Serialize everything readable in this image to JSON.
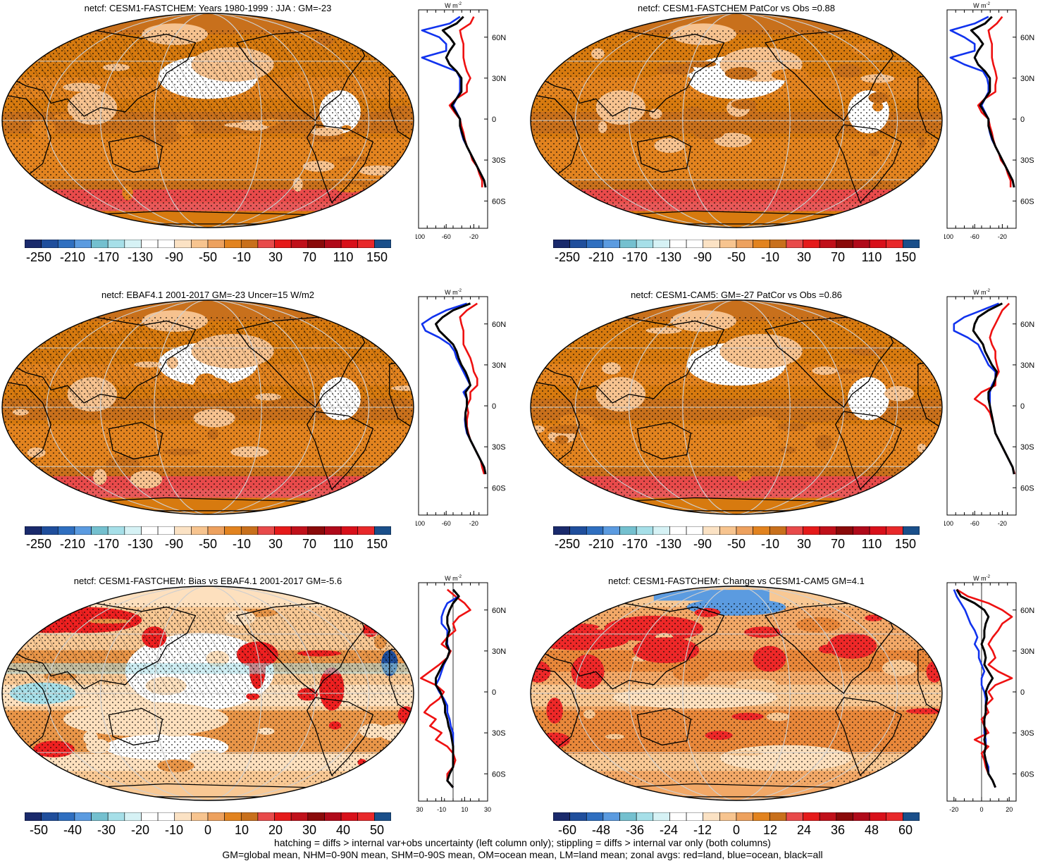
{
  "panels": [
    {
      "title": "netcf: CESM1-FASTCHEM: Years 1980-1999 : JJA : GM=-23",
      "palette": "main",
      "fill": [
        "#d77a0f",
        "#c8701c",
        "#e2831f",
        "#f6c28f",
        "#ffffff"
      ],
      "hatch": true,
      "cbar_labels": [
        "-250",
        "-210",
        "-170",
        "-130",
        "-90",
        "-50",
        "-10",
        "30",
        "70",
        "110",
        "150"
      ],
      "zonal_xticks": [
        "-100",
        "-60",
        "-20"
      ],
      "zonal_xlim": [
        -100,
        0
      ],
      "zonal_yticks": [
        "60N",
        "30N",
        "0",
        "30S",
        "60S"
      ],
      "zonal_units": "W m",
      "zonal_units_sup": "-2"
    },
    {
      "title": "netcf: CESM1-FASTCHEM PatCor vs Obs =0.88",
      "palette": "main",
      "fill": [
        "#d77a0f",
        "#c8701c",
        "#e2831f",
        "#f6c28f",
        "#ffffff"
      ],
      "hatch": false,
      "cbar_labels": [
        "-250",
        "-210",
        "-170",
        "-130",
        "-90",
        "-50",
        "-10",
        "30",
        "70",
        "110",
        "150"
      ],
      "zonal_xticks": [
        "-100",
        "-60",
        "-20"
      ],
      "zonal_xlim": [
        -100,
        0
      ],
      "zonal_yticks": [
        "60N",
        "30N",
        "0",
        "30S",
        "60S"
      ],
      "zonal_units": "W m",
      "zonal_units_sup": "-2"
    },
    {
      "title": "netcf: EBAF4.1 2001-2017 GM=-23 Uncer=15 W/m2",
      "palette": "main",
      "fill": [
        "#d77a0f",
        "#c8701c",
        "#e2831f",
        "#f6c28f",
        "#ffffff"
      ],
      "hatch": true,
      "cbar_labels": [
        "-250",
        "-210",
        "-170",
        "-130",
        "-90",
        "-50",
        "-10",
        "30",
        "70",
        "110",
        "150"
      ],
      "zonal_xticks": [
        "-100",
        "-60",
        "-20"
      ],
      "zonal_xlim": [
        -100,
        0
      ],
      "zonal_yticks": [
        "60N",
        "30N",
        "0",
        "30S",
        "60S"
      ],
      "zonal_units": "W m",
      "zonal_units_sup": "-2"
    },
    {
      "title": "netcf: CESM1-CAM5: GM=-27 PatCor vs Obs =0.86",
      "palette": "main",
      "fill": [
        "#d77a0f",
        "#c8701c",
        "#e2831f",
        "#f6c28f",
        "#ffffff"
      ],
      "hatch": false,
      "cbar_labels": [
        "-250",
        "-210",
        "-170",
        "-130",
        "-90",
        "-50",
        "-10",
        "30",
        "70",
        "110",
        "150"
      ],
      "zonal_xticks": [
        "-100",
        "-60",
        "-20"
      ],
      "zonal_xlim": [
        -100,
        0
      ],
      "zonal_yticks": [
        "60N",
        "30N",
        "0",
        "30S",
        "60S"
      ],
      "zonal_units": "W m",
      "zonal_units_sup": "-2"
    },
    {
      "title": "netcf: CESM1-FASTCHEM: Bias vs EBAF4.1 2001-2017 GM=-5.6",
      "palette": "diff",
      "fill": [
        "#f8c894",
        "#fde0be",
        "#e89548",
        "#ee2020",
        "#ffffff"
      ],
      "hatch": true,
      "cbar_labels": [
        "-50",
        "-40",
        "-30",
        "-20",
        "-10",
        "0",
        "10",
        "20",
        "30",
        "40",
        "50"
      ],
      "zonal_xticks": [
        "-30",
        "-10",
        "10",
        "30"
      ],
      "zonal_xlim": [
        -30,
        30
      ],
      "zonal_yticks": [
        "60N",
        "30N",
        "0",
        "30S",
        "60S"
      ],
      "zonal_units": "W m",
      "zonal_units_sup": "-2"
    },
    {
      "title": "netcf: CESM1-FASTCHEM: Change vs CESM1-CAM5 GM=4.1",
      "palette": "diff",
      "fill": [
        "#f2a867",
        "#f8c894",
        "#e8873a",
        "#ee2828",
        "#fde0be"
      ],
      "hatch": false,
      "cbar_labels": [
        "-60",
        "-48",
        "-36",
        "-24",
        "-12",
        "0",
        "12",
        "24",
        "36",
        "48",
        "60"
      ],
      "zonal_xticks": [
        "-20",
        "0",
        "20"
      ],
      "zonal_xlim": [
        -25,
        25
      ],
      "zonal_yticks": [
        "60N",
        "30N",
        "0",
        "30S",
        "60S"
      ],
      "zonal_units": "W m",
      "zonal_units_sup": "-2"
    }
  ],
  "palettes": {
    "main": [
      "#1a2a6c",
      "#1f4e9c",
      "#2f6fc0",
      "#5b9be0",
      "#74c0cf",
      "#a6dfe8",
      "#d6f2f5",
      "#ffffff",
      "#ffffff",
      "#fbe2c4",
      "#f7c48f",
      "#eda15e",
      "#e2831f",
      "#c8701c",
      "#e84a4a",
      "#e51a1a",
      "#c0101a",
      "#8a0a0a",
      "#b00a1a",
      "#d8101a",
      "#e8282a",
      "#1a4f8a"
    ],
    "diff": [
      "#1a2a6c",
      "#1f4e9c",
      "#2f6fc0",
      "#5b9be0",
      "#74c0cf",
      "#a6dfe8",
      "#d6f2f5",
      "#ffffff",
      "#ffffff",
      "#fbe2c4",
      "#f7c48f",
      "#eda15e",
      "#e2831f",
      "#c8701c",
      "#e84a4a",
      "#e51a1a",
      "#c0101a",
      "#8a0a0a",
      "#b00a1a",
      "#d8101a",
      "#e8282a",
      "#1a4f8a"
    ]
  },
  "line_colors": {
    "land": "#ee1111",
    "ocean": "#1133ee",
    "all": "#000000"
  },
  "zonal_profiles": [
    {
      "lat": [
        75,
        70,
        65,
        60,
        55,
        50,
        45,
        40,
        35,
        30,
        25,
        20,
        15,
        10,
        5,
        0,
        -5,
        -10,
        -15,
        -20,
        -25,
        -30,
        -35,
        -40,
        -45,
        -50
      ],
      "land": [
        -20,
        -25,
        -40,
        -38,
        -35,
        -35,
        -35,
        -33,
        -30,
        -25,
        -30,
        -30,
        -45,
        -55,
        -48,
        -40,
        -38,
        -35,
        -33,
        -30,
        -25,
        -22,
        -15,
        -12,
        -8,
        -8
      ],
      "ocean": [
        -40,
        -55,
        -95,
        -70,
        -60,
        -60,
        -95,
        -70,
        -45,
        -40,
        -40,
        -40,
        -45,
        -50,
        -45,
        -40,
        -40,
        -38,
        -35,
        -30,
        -25,
        -20,
        -15,
        -10,
        -5,
        -3
      ],
      "all": [
        -35,
        -45,
        -65,
        -55,
        -48,
        -55,
        -60,
        -55,
        -45,
        -38,
        -38,
        -38,
        -45,
        -52,
        -46,
        -40,
        -40,
        -37,
        -34,
        -30,
        -25,
        -20,
        -15,
        -10,
        -5,
        -3
      ]
    },
    {
      "lat": [
        75,
        70,
        65,
        60,
        55,
        50,
        45,
        40,
        35,
        30,
        25,
        20,
        15,
        10,
        5,
        0,
        -5,
        -10,
        -15,
        -20,
        -25,
        -30,
        -35,
        -40,
        -45,
        -50
      ],
      "land": [
        -20,
        -28,
        -40,
        -38,
        -35,
        -35,
        -35,
        -33,
        -30,
        -28,
        -30,
        -30,
        -45,
        -55,
        -50,
        -40,
        -38,
        -35,
        -33,
        -30,
        -25,
        -22,
        -15,
        -12,
        -8,
        -8
      ],
      "ocean": [
        -40,
        -60,
        -95,
        -75,
        -60,
        -60,
        -95,
        -75,
        -48,
        -42,
        -40,
        -40,
        -45,
        -50,
        -45,
        -40,
        -40,
        -38,
        -35,
        -30,
        -25,
        -20,
        -15,
        -10,
        -5,
        -3
      ],
      "all": [
        -35,
        -45,
        -65,
        -55,
        -48,
        -55,
        -60,
        -55,
        -45,
        -38,
        -38,
        -38,
        -45,
        -52,
        -46,
        -40,
        -40,
        -37,
        -34,
        -30,
        -25,
        -20,
        -15,
        -10,
        -5,
        -3
      ]
    },
    {
      "lat": [
        75,
        70,
        65,
        60,
        55,
        50,
        45,
        40,
        35,
        30,
        25,
        20,
        15,
        10,
        5,
        0,
        -5,
        -10,
        -15,
        -20,
        -25,
        -30,
        -35,
        -40,
        -45,
        -50
      ],
      "land": [
        -15,
        -30,
        -40,
        -38,
        -35,
        -35,
        -35,
        -30,
        -25,
        -22,
        -20,
        -15,
        -15,
        -25,
        -25,
        -30,
        -28,
        -30,
        -30,
        -28,
        -25,
        -20,
        -15,
        -10,
        -8,
        -5
      ],
      "ocean": [
        -30,
        -60,
        -80,
        -95,
        -90,
        -70,
        -55,
        -48,
        -45,
        -40,
        -35,
        -30,
        -25,
        -35,
        -30,
        -30,
        -32,
        -33,
        -32,
        -30,
        -25,
        -20,
        -15,
        -10,
        -5,
        -3
      ],
      "all": [
        -25,
        -50,
        -65,
        -75,
        -70,
        -60,
        -50,
        -45,
        -42,
        -38,
        -32,
        -28,
        -25,
        -32,
        -30,
        -30,
        -32,
        -32,
        -31,
        -29,
        -25,
        -20,
        -15,
        -10,
        -5,
        -3
      ]
    },
    {
      "lat": [
        75,
        70,
        65,
        60,
        55,
        50,
        45,
        40,
        35,
        30,
        25,
        20,
        15,
        10,
        5,
        0,
        -5,
        -10,
        -15,
        -20,
        -25,
        -30,
        -35,
        -40,
        -45,
        -50
      ],
      "land": [
        -10,
        -20,
        -25,
        -30,
        -35,
        -38,
        -35,
        -30,
        -30,
        -28,
        -25,
        -30,
        -30,
        -50,
        -60,
        -45,
        -38,
        -35,
        -32,
        -30,
        -25,
        -20,
        -15,
        -10,
        -5,
        -2
      ],
      "ocean": [
        -25,
        -50,
        -75,
        -90,
        -90,
        -70,
        -55,
        -50,
        -45,
        -40,
        -30,
        -30,
        -35,
        -38,
        -38,
        -38,
        -36,
        -34,
        -32,
        -30,
        -25,
        -20,
        -15,
        -10,
        -5,
        -3
      ],
      "all": [
        -20,
        -40,
        -55,
        -60,
        -62,
        -55,
        -48,
        -45,
        -40,
        -35,
        -28,
        -30,
        -33,
        -40,
        -40,
        -38,
        -36,
        -34,
        -32,
        -30,
        -25,
        -20,
        -15,
        -10,
        -5,
        -3
      ]
    },
    {
      "lat": [
        75,
        70,
        65,
        60,
        55,
        50,
        45,
        40,
        35,
        30,
        25,
        20,
        15,
        10,
        5,
        0,
        -5,
        -10,
        -15,
        -20,
        -25,
        -30,
        -35,
        -40,
        -45,
        -50,
        -55,
        -60,
        -65,
        -70
      ],
      "land": [
        -5,
        2,
        10,
        15,
        5,
        0,
        2,
        -5,
        -10,
        -2,
        -5,
        -12,
        -20,
        -28,
        -15,
        -8,
        -12,
        -20,
        -25,
        -15,
        -20,
        -10,
        -15,
        -5,
        0,
        2,
        0,
        -5,
        -5,
        0
      ],
      "ocean": [
        0,
        5,
        -5,
        -8,
        -10,
        -10,
        -5,
        -5,
        -5,
        -3,
        -5,
        -8,
        -10,
        -12,
        -15,
        -12,
        -8,
        -5,
        -5,
        -3,
        -2,
        0,
        0,
        0,
        0,
        0,
        0,
        -3,
        -5,
        0
      ],
      "all": [
        0,
        5,
        0,
        -3,
        -5,
        -5,
        -3,
        -5,
        -6,
        -3,
        -5,
        -9,
        -12,
        -15,
        -15,
        -11,
        -9,
        -7,
        -7,
        -5,
        -4,
        -2,
        -1,
        0,
        0,
        0,
        0,
        -3,
        -5,
        0
      ]
    },
    {
      "lat": [
        75,
        70,
        65,
        60,
        55,
        50,
        45,
        40,
        35,
        30,
        25,
        20,
        15,
        10,
        5,
        0,
        -5,
        -10,
        -15,
        -20,
        -25,
        -30,
        -35,
        -40,
        -45,
        -50,
        -55,
        -60,
        -65,
        -70
      ],
      "land": [
        -18,
        -10,
        5,
        15,
        22,
        15,
        12,
        8,
        5,
        8,
        10,
        5,
        12,
        22,
        10,
        5,
        8,
        3,
        5,
        0,
        2,
        5,
        -5,
        5,
        0,
        2,
        3,
        5,
        8,
        10
      ],
      "ocean": [
        -20,
        -18,
        -15,
        -12,
        -10,
        -8,
        -5,
        -3,
        -5,
        -2,
        -2,
        0,
        2,
        0,
        0,
        2,
        3,
        3,
        3,
        2,
        2,
        2,
        3,
        3,
        2,
        3,
        5,
        5,
        8,
        10
      ],
      "all": [
        -18,
        -15,
        -5,
        2,
        5,
        3,
        2,
        2,
        0,
        2,
        3,
        2,
        5,
        8,
        5,
        3,
        4,
        3,
        3,
        2,
        2,
        3,
        2,
        3,
        2,
        3,
        4,
        5,
        8,
        10
      ]
    }
  ],
  "footer": {
    "line1": "hatching = diffs > internal var+obs uncertainty (left column only); stippling = diffs > internal var only (both columns)",
    "line2": "GM=global mean, NHM=0-90N mean, SHM=0-90S mean, OM=ocean mean, LM=land mean; zonal avgs: red=land, blue=ocean, black=all"
  }
}
